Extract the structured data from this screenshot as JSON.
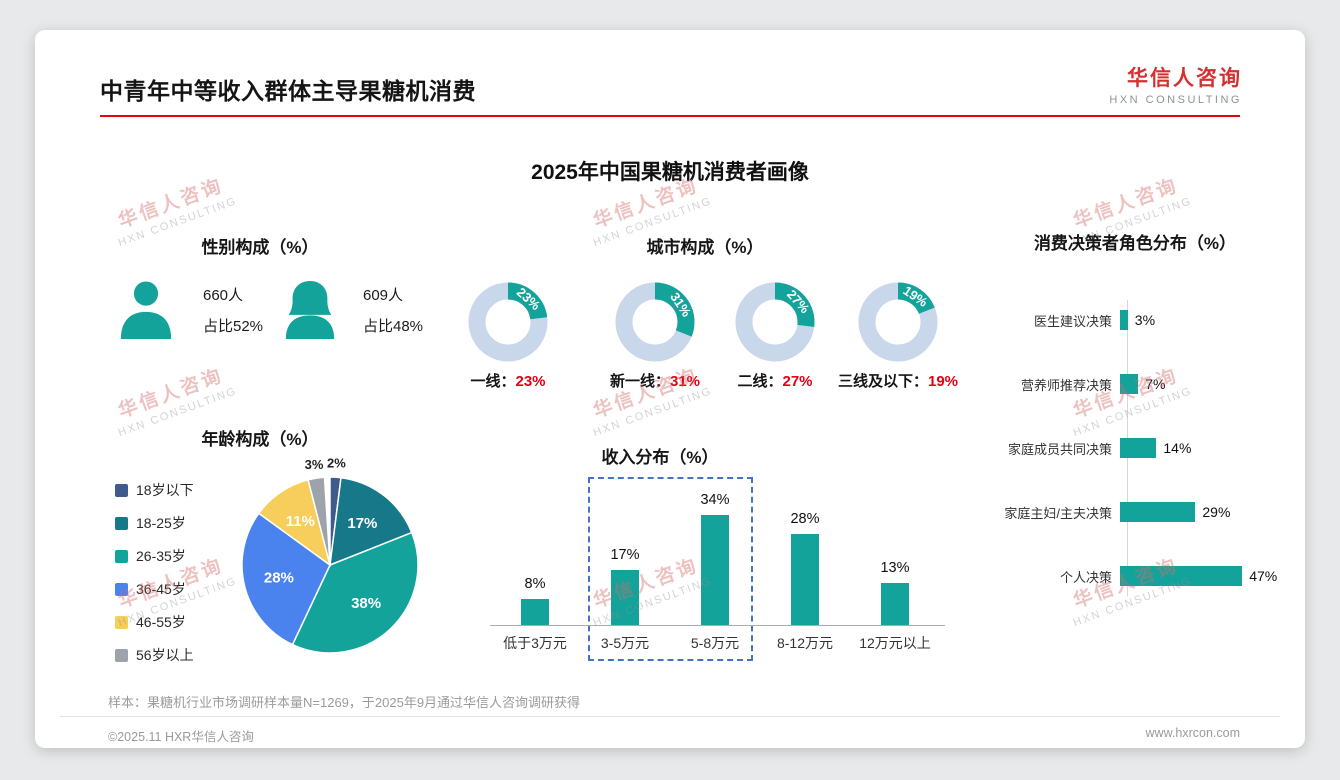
{
  "page": {
    "title": "中青年中等收入群体主导果糖机消费",
    "logo_cn": "华信人咨询",
    "logo_en": "HXN CONSULTING",
    "watermark_cn": "华信人咨询",
    "watermark_en": "HXN CONSULTING",
    "sample_note": "样本：果糖机行业市场调研样本量N=1269，于2025年9月通过华信人咨询调研获得",
    "footer_left": "©2025.11 HXR华信人咨询",
    "footer_right": "www.hxrcon.com"
  },
  "main_title": "2025年中国果糖机消费者画像",
  "colors": {
    "accent": "#14A39A",
    "donut_rest": "#C9D7EA",
    "red": "#E60012",
    "logo_red": "#D3302F",
    "dashed_box": "#4472C4"
  },
  "chart_data": [
    {
      "type": "pictograph",
      "title": "性别构成（%）",
      "items": [
        {
          "label": "男性",
          "count": "660人",
          "share": "占比52%"
        },
        {
          "label": "女性",
          "count": "609人",
          "share": "占比48%"
        }
      ]
    },
    {
      "type": "donut-set",
      "title": "城市构成（%）",
      "items": [
        {
          "label": "一线",
          "value": 23
        },
        {
          "label": "新一线",
          "value": 31
        },
        {
          "label": "二线",
          "value": 27
        },
        {
          "label": "三线及以下",
          "value": 19
        }
      ]
    },
    {
      "type": "bar-horizontal",
      "title": "消费决策者角色分布（%）",
      "categories": [
        "医生建议决策",
        "营养师推荐决策",
        "家庭成员共同决策",
        "家庭主妇/主夫决策",
        "个人决策"
      ],
      "values": [
        3,
        7,
        14,
        29,
        47
      ],
      "xlim": [
        0,
        50
      ]
    },
    {
      "type": "pie",
      "title": "年龄构成（%）",
      "categories": [
        "18岁以下",
        "18-25岁",
        "26-35岁",
        "36-45岁",
        "46-55岁",
        "56岁以上"
      ],
      "values": [
        2,
        17,
        38,
        28,
        11,
        3
      ],
      "colors": [
        "#3F5A8C",
        "#17788A",
        "#14A39A",
        "#4A83EE",
        "#F7CE5B",
        "#9CA3AB"
      ]
    },
    {
      "type": "bar",
      "title": "收入分布（%）",
      "categories": [
        "低于3万元",
        "3-5万元",
        "5-8万元",
        "8-12万元",
        "12万元以上"
      ],
      "values": [
        8,
        17,
        34,
        28,
        13
      ],
      "ylim": [
        0,
        40
      ],
      "highlight_box": [
        "3-5万元",
        "5-8万元"
      ]
    }
  ]
}
